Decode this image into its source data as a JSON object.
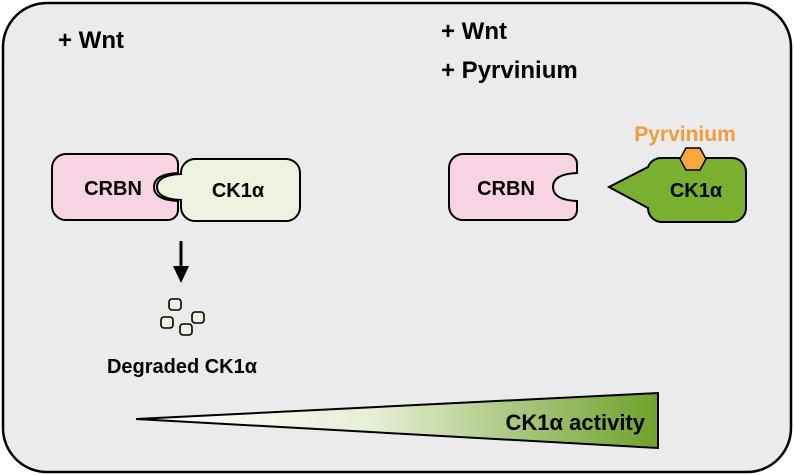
{
  "left_panel": {
    "condition": "+ Wnt",
    "crbn_label": "CRBN",
    "ck1a_label": "CK1α",
    "degraded_label": "Degraded CK1α"
  },
  "right_panel": {
    "condition_line1": "+ Wnt",
    "condition_line2": "+ Pyrvinium",
    "drug_label": "Pyrvinium",
    "crbn_label": "CRBN",
    "ck1a_label": "CK1α"
  },
  "gradient_bar": {
    "label": "CK1α activity"
  },
  "colors": {
    "background": "#ebebeb",
    "crbn_fill": "#f7d3e3",
    "ck1a_pale_fill": "#eef3df",
    "ck1a_active_fill": "#7ab02f",
    "pyrvinium": "#f29a3c",
    "gradient_start": "#ffffff",
    "gradient_end": "#6ea12a"
  }
}
